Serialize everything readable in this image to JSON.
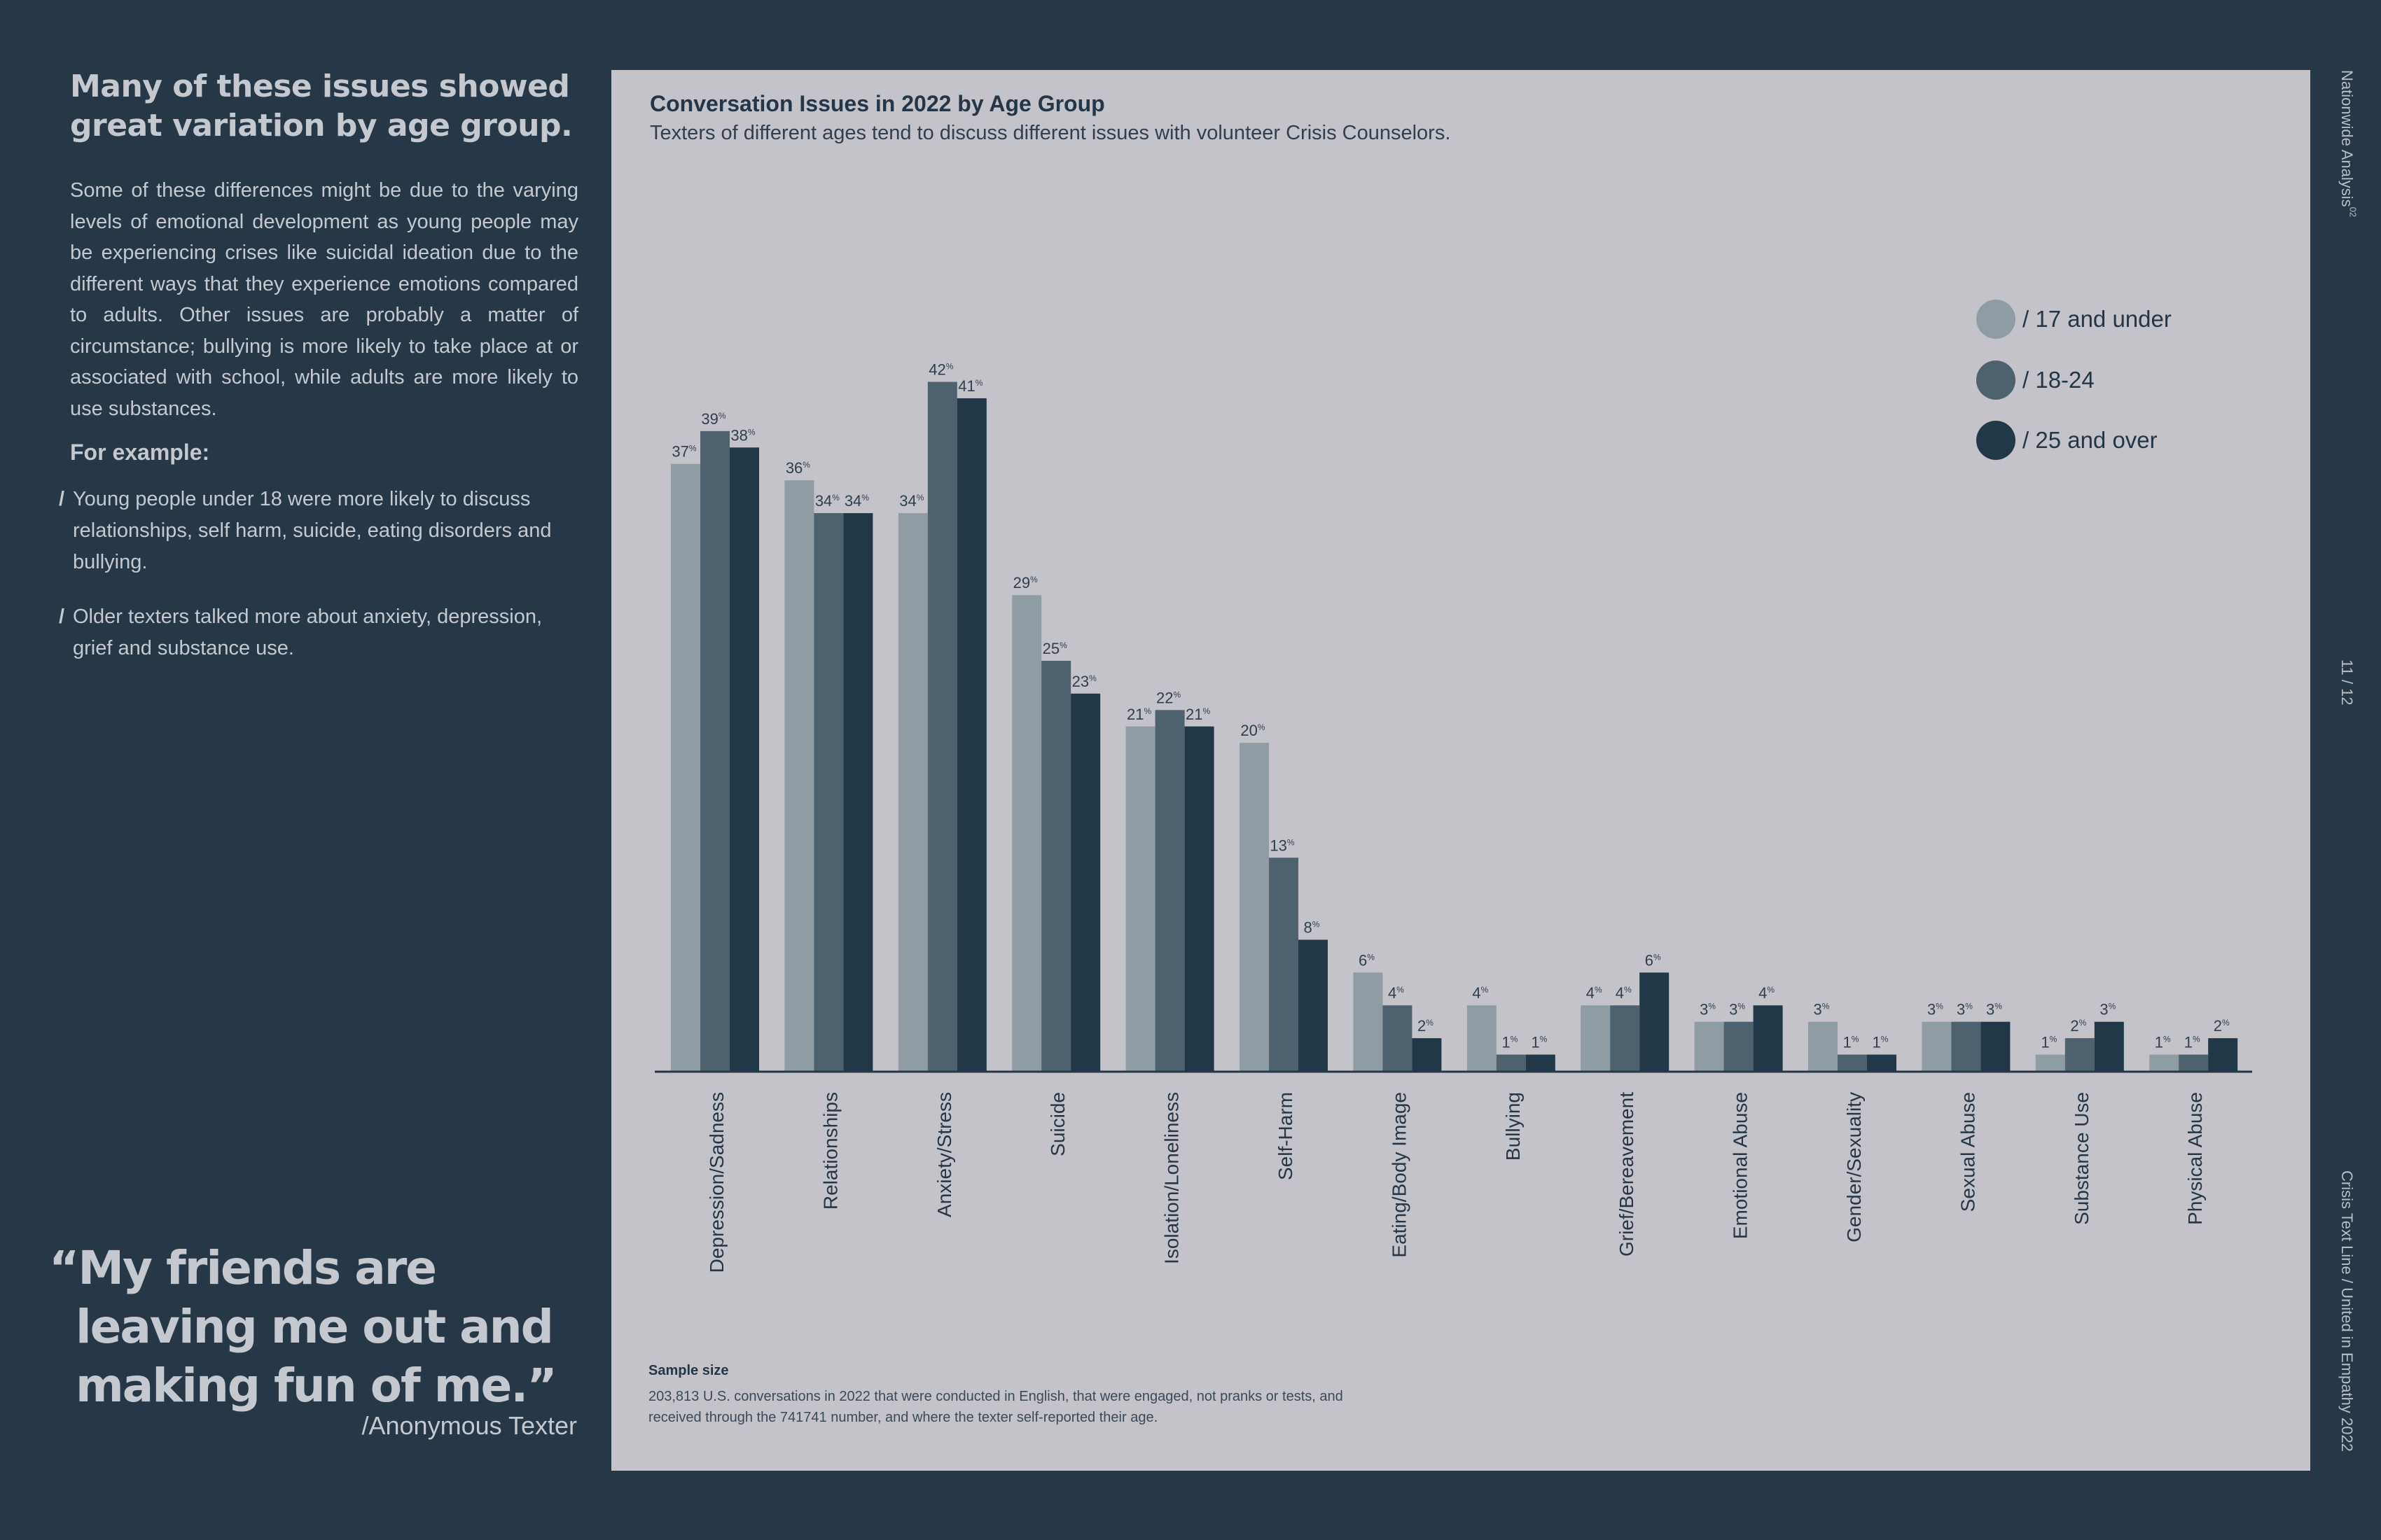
{
  "left": {
    "heading": "Many of these issues showed great variation by age group.",
    "body": "Some of these differences might be due to the varying levels of emotional development as young people may be experiencing crises like suicidal ideation due to the different ways that they experience emotions compared to adults. Other issues are probably a matter of circumstance; bullying is more likely to take place at or associated with school, while adults are more likely to use substances.",
    "example_heading": "For example:",
    "bullets": [
      "Young people under 18 were more likely to discuss relationships, self harm, suicide, eating disorders and bullying.",
      "Older texters talked more about anxiety, depression, grief and substance use."
    ],
    "bullet_marker": "/"
  },
  "quote": {
    "line1": "“My friends are",
    "line2": "leaving me out and",
    "line3": "making fun of me.”",
    "attribution": "/Anonymous Texter"
  },
  "side": {
    "top": "Nationwide Analysis",
    "top_sup": "02",
    "page": "11 / 12",
    "bottom": "Crisis Text Line  /  United in Empathy 2022"
  },
  "sample": {
    "title": "Sample size",
    "text": "203,813 U.S. conversations in 2022 that were conducted in English, that were engaged, not pranks or tests, and received through the 741741 number, and where the texter self-reported their age."
  },
  "chart_data": {
    "type": "bar",
    "title": "Conversation Issues in 2022 by Age Group",
    "subtitle": "Texters of different ages tend to discuss different issues with volunteer Crisis Counselors.",
    "value_suffix": "%",
    "categories": [
      "Depression/Sadness",
      "Relationships",
      "Anxiety/Stress",
      "Suicide",
      "Isolation/Loneliness",
      "Self-Harm",
      "Eating/Body Image",
      "Bullying",
      "Grief/Bereavement",
      "Emotional Abuse",
      "Gender/Sexuality",
      "Sexual Abuse",
      "Substance Use",
      "Physical Abuse"
    ],
    "series": [
      {
        "name": "/ 17 and under",
        "color": "#8f9ca4",
        "values": [
          37,
          36,
          34,
          29,
          21,
          20,
          6,
          4,
          4,
          3,
          3,
          3,
          1,
          1
        ]
      },
      {
        "name": "/ 18-24",
        "color": "#4d616f",
        "values": [
          39,
          34,
          42,
          25,
          22,
          13,
          4,
          1,
          4,
          3,
          1,
          3,
          2,
          1
        ]
      },
      {
        "name": "/ 25 and over",
        "color": "#213849",
        "values": [
          38,
          34,
          41,
          23,
          21,
          8,
          2,
          1,
          6,
          4,
          1,
          3,
          3,
          2
        ]
      }
    ],
    "ylim": [
      0,
      45
    ],
    "legend_position": "right",
    "grid": false
  }
}
